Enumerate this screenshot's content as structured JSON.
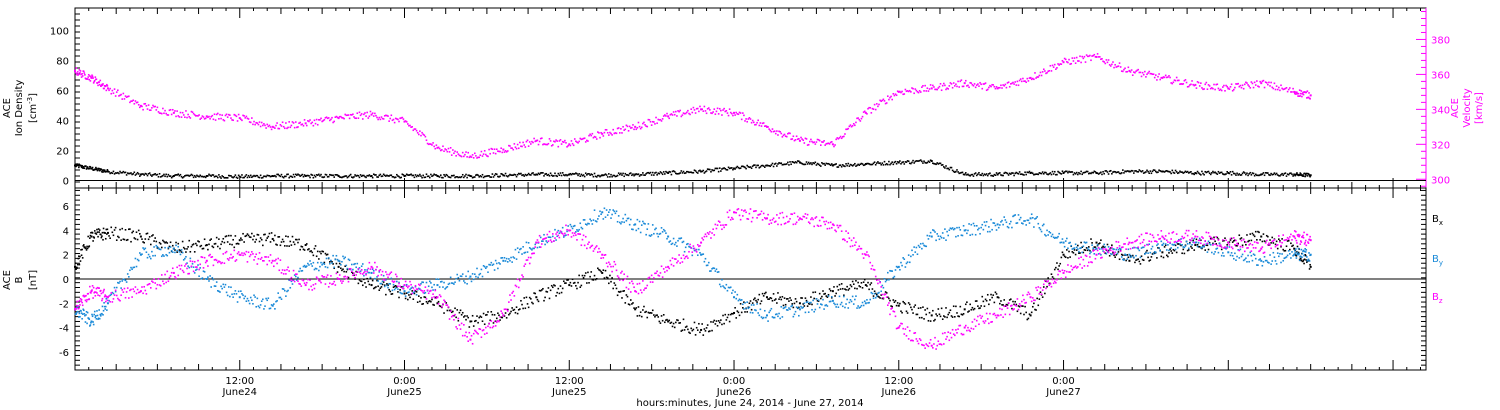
{
  "chart_data": [
    {
      "type": "scatter",
      "panel": "top",
      "ylabel_lines": [
        "ACE",
        "Ion Density"
      ],
      "ylabel_unit_prefix": "[cm",
      "ylabel_unit_sup": "-3",
      "ylabel_unit_suffix": "]",
      "ylim": [
        -5,
        115
      ],
      "yticks": [
        0,
        20,
        40,
        60,
        80,
        100
      ],
      "y2label_lines": [
        "ACE",
        "Velocity"
      ],
      "y2label_unit": "[km/s]",
      "y2lim": [
        295,
        398
      ],
      "y2ticks": [
        300,
        320,
        340,
        360,
        380
      ],
      "xlim": [
        0,
        4.1
      ],
      "grid": false,
      "series": [
        {
          "color": "#000000",
          "axis": "left",
          "x": [
            0.0,
            0.05,
            0.1,
            0.2,
            0.3,
            0.4,
            0.5,
            0.6,
            0.7,
            0.8,
            0.9,
            1.0,
            1.1,
            1.2,
            1.3,
            1.4,
            1.5,
            1.6,
            1.7,
            1.8,
            1.9,
            2.0,
            2.1,
            2.2,
            2.3,
            2.4,
            2.5,
            2.6,
            2.7,
            2.8,
            2.9,
            3.0,
            3.1,
            3.2,
            3.3,
            3.4,
            3.5,
            3.6,
            3.7,
            3.75
          ],
          "values": [
            10,
            8,
            6,
            4,
            3,
            3,
            2.5,
            3,
            3,
            3,
            3,
            3,
            3,
            3,
            3.5,
            4,
            4,
            3.5,
            4,
            5,
            6,
            8,
            10,
            12,
            10,
            11,
            12,
            13,
            4,
            4,
            5,
            5,
            5,
            6,
            6,
            5,
            5,
            4,
            4,
            3.5
          ]
        },
        {
          "color": "#ff00ff",
          "axis": "right",
          "x": [
            0.0,
            0.05,
            0.1,
            0.2,
            0.3,
            0.4,
            0.5,
            0.6,
            0.7,
            0.8,
            0.9,
            1.0,
            1.1,
            1.2,
            1.3,
            1.4,
            1.5,
            1.6,
            1.7,
            1.8,
            1.9,
            2.0,
            2.1,
            2.2,
            2.3,
            2.4,
            2.5,
            2.6,
            2.7,
            2.8,
            2.9,
            3.0,
            3.1,
            3.2,
            3.3,
            3.4,
            3.5,
            3.6,
            3.7,
            3.75
          ],
          "values": [
            362,
            358,
            352,
            342,
            338,
            336,
            335,
            330,
            332,
            335,
            337,
            333,
            318,
            313,
            317,
            322,
            320,
            326,
            330,
            336,
            340,
            338,
            330,
            322,
            320,
            338,
            350,
            352,
            355,
            352,
            358,
            367,
            370,
            362,
            358,
            354,
            352,
            355,
            350,
            348
          ]
        }
      ]
    },
    {
      "type": "scatter",
      "panel": "bottom",
      "ylabel_lines": [
        "ACE",
        "B"
      ],
      "ylabel_unit": "[nT]",
      "ylim": [
        -7.5,
        7.5
      ],
      "yticks": [
        -6,
        -4,
        -2,
        0,
        2,
        4,
        6
      ],
      "xlim": [
        0,
        4.1
      ],
      "grid": false,
      "legend_position": "right",
      "series": [
        {
          "name": "B",
          "sub": "x",
          "color": "#000000",
          "x": [
            0.0,
            0.05,
            0.1,
            0.2,
            0.3,
            0.4,
            0.5,
            0.6,
            0.7,
            0.8,
            0.9,
            1.0,
            1.1,
            1.2,
            1.3,
            1.4,
            1.5,
            1.6,
            1.7,
            1.8,
            1.9,
            2.0,
            2.1,
            2.2,
            2.3,
            2.4,
            2.5,
            2.6,
            2.7,
            2.8,
            2.9,
            3.0,
            3.1,
            3.2,
            3.3,
            3.4,
            3.5,
            3.6,
            3.7,
            3.75
          ],
          "values": [
            1.0,
            3.5,
            3.8,
            3.5,
            2.5,
            2.8,
            3.2,
            3.3,
            2.8,
            1.0,
            -0.5,
            -1.2,
            -2.0,
            -3.5,
            -3.0,
            -1.5,
            -0.5,
            0.5,
            -2.5,
            -3.5,
            -4.2,
            -2.8,
            -1.5,
            -2.0,
            -1.0,
            -0.5,
            -2.2,
            -3.0,
            -2.5,
            -1.5,
            -3.0,
            2.0,
            3.0,
            1.5,
            2.2,
            2.8,
            3.0,
            3.5,
            2.5,
            1.0
          ]
        },
        {
          "name": "B",
          "sub": "y",
          "color": "#1a8ad8",
          "x": [
            0.0,
            0.05,
            0.1,
            0.2,
            0.3,
            0.4,
            0.5,
            0.6,
            0.7,
            0.8,
            0.9,
            1.0,
            1.1,
            1.2,
            1.3,
            1.4,
            1.5,
            1.6,
            1.7,
            1.8,
            1.9,
            2.0,
            2.1,
            2.2,
            2.3,
            2.4,
            2.5,
            2.6,
            2.7,
            2.8,
            2.9,
            3.0,
            3.1,
            3.2,
            3.3,
            3.4,
            3.5,
            3.6,
            3.7,
            3.75
          ],
          "values": [
            -2.5,
            -3.5,
            -2.0,
            2.0,
            2.5,
            0.0,
            -1.5,
            -2.2,
            1.0,
            1.5,
            0.5,
            -1.0,
            -0.5,
            0.2,
            1.5,
            3.0,
            4.0,
            5.5,
            4.5,
            3.5,
            2.0,
            -1.5,
            -3.0,
            -2.5,
            -1.8,
            -2.0,
            1.0,
            3.5,
            4.0,
            4.5,
            5.0,
            3.0,
            2.5,
            2.0,
            2.8,
            3.0,
            2.2,
            1.5,
            2.0,
            2.0
          ]
        },
        {
          "name": "B",
          "sub": "z",
          "color": "#ff00ff",
          "x": [
            0.0,
            0.05,
            0.1,
            0.2,
            0.3,
            0.4,
            0.5,
            0.6,
            0.7,
            0.8,
            0.9,
            1.0,
            1.1,
            1.2,
            1.3,
            1.4,
            1.5,
            1.6,
            1.7,
            1.8,
            1.9,
            2.0,
            2.1,
            2.2,
            2.3,
            2.4,
            2.5,
            2.6,
            2.7,
            2.8,
            2.9,
            3.0,
            3.1,
            3.2,
            3.3,
            3.4,
            3.5,
            3.6,
            3.7,
            3.75
          ],
          "values": [
            -2.5,
            -1.0,
            -1.5,
            -1.0,
            0.5,
            1.5,
            2.0,
            1.5,
            -0.5,
            0.0,
            1.0,
            -0.5,
            -1.5,
            -5.0,
            -3.0,
            3.0,
            4.0,
            2.0,
            -1.0,
            1.0,
            3.0,
            5.5,
            5.0,
            5.0,
            4.5,
            2.0,
            -4.0,
            -5.5,
            -4.0,
            -3.0,
            -1.5,
            0.5,
            2.0,
            3.0,
            3.5,
            3.5,
            3.0,
            2.5,
            3.5,
            3.2
          ]
        }
      ]
    }
  ],
  "x_axis": {
    "ticks": [
      {
        "x": 0.5,
        "line1": "12:00",
        "line2": "June24"
      },
      {
        "x": 1.0,
        "line1": "0:00",
        "line2": "June25"
      },
      {
        "x": 1.5,
        "line1": "12:00",
        "line2": "June25"
      },
      {
        "x": 2.0,
        "line1": "0:00",
        "line2": "June26"
      },
      {
        "x": 2.5,
        "line1": "12:00",
        "line2": "June26"
      },
      {
        "x": 3.0,
        "line1": "0:00",
        "line2": "June27"
      }
    ],
    "title": "hours:minutes, June 24, 2014 - June 27, 2014"
  }
}
